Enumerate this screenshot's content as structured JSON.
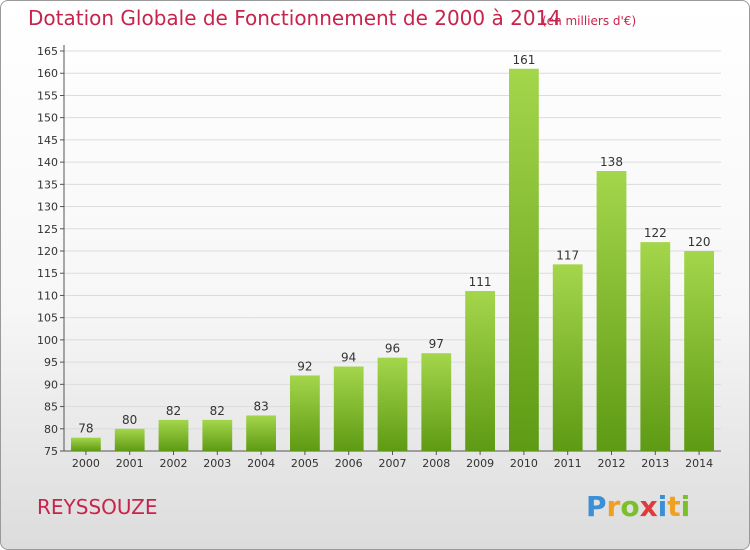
{
  "title": "Dotation Globale de Fonctionnement de 2000 à 2014",
  "subtitle": "(en milliers d'€)",
  "commune": "REYSSOUZE",
  "logo_text": "Proxiti",
  "colors": {
    "title": "#c8234d",
    "bar_top": "#a4d64b",
    "bar_bottom": "#5e9a14",
    "grid": "#dcdcdc"
  },
  "chart_data": {
    "type": "bar",
    "categories": [
      "2000",
      "2001",
      "2002",
      "2003",
      "2004",
      "2005",
      "2006",
      "2007",
      "2008",
      "2009",
      "2010",
      "2011",
      "2012",
      "2013",
      "2014"
    ],
    "values": [
      78,
      80,
      82,
      82,
      83,
      92,
      94,
      96,
      97,
      111,
      161,
      117,
      138,
      122,
      120
    ],
    "ylim": [
      75,
      165
    ],
    "yticks": [
      75,
      80,
      85,
      90,
      95,
      100,
      105,
      110,
      115,
      120,
      125,
      130,
      135,
      140,
      145,
      150,
      155,
      160,
      165
    ],
    "grid": true,
    "data_labels": true
  }
}
